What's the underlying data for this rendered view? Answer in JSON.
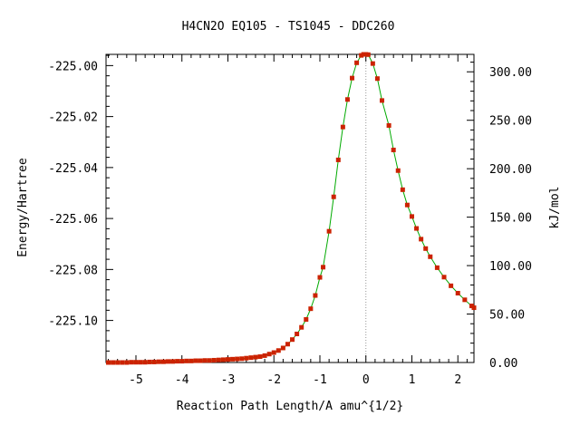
{
  "chart_data": {
    "type": "line",
    "title": "H4CN2O   EQ105 - TS1045 - DDC260",
    "xlabel": "Reaction Path Length/A amu^{1/2}",
    "ylabel": "Energy/Hartree",
    "y2label": "kJ/mol",
    "xlim": [
      -5.65,
      2.35
    ],
    "ylim": [
      -225.1165,
      -224.9956
    ],
    "y2lim": [
      0.0,
      318.0
    ],
    "x_ticks": [
      "-5",
      "-4",
      "-3",
      "-2",
      "-1",
      "0",
      "1",
      "2"
    ],
    "x_tick_values": [
      -5,
      -4,
      -3,
      -2,
      -1,
      0,
      1,
      2
    ],
    "y_ticks": [
      "-225.00",
      "-225.02",
      "-225.04",
      "-225.06",
      "-225.08",
      "-225.10"
    ],
    "y_tick_values": [
      -225.0,
      -225.02,
      -225.04,
      -225.06,
      -225.08,
      -225.1
    ],
    "y2_ticks": [
      "0.00",
      "50.00",
      "100.00",
      "150.00",
      "200.00",
      "250.00",
      "300.00"
    ],
    "y2_tick_values": [
      0,
      50,
      100,
      150,
      200,
      250,
      300
    ],
    "ts_line_x": 0.0,
    "grid": false,
    "line_color": "#00aa00",
    "marker_color": "#cc2200",
    "series": [
      {
        "points": [
          [
            -5.6,
            -225.1165
          ],
          [
            -5.5,
            -225.1165
          ],
          [
            -5.4,
            -225.1165
          ],
          [
            -5.3,
            -225.1165
          ],
          [
            -5.2,
            -225.1165
          ],
          [
            -5.1,
            -225.1164
          ],
          [
            -5.0,
            -225.1164
          ],
          [
            -4.9,
            -225.1164
          ],
          [
            -4.8,
            -225.1164
          ],
          [
            -4.7,
            -225.1163
          ],
          [
            -4.6,
            -225.1163
          ],
          [
            -4.5,
            -225.1162
          ],
          [
            -4.4,
            -225.1162
          ],
          [
            -4.3,
            -225.1161
          ],
          [
            -4.2,
            -225.1161
          ],
          [
            -4.1,
            -225.116
          ],
          [
            -4.0,
            -225.116
          ],
          [
            -3.9,
            -225.1159
          ],
          [
            -3.8,
            -225.1159
          ],
          [
            -3.7,
            -225.1158
          ],
          [
            -3.6,
            -225.1158
          ],
          [
            -3.5,
            -225.1157
          ],
          [
            -3.4,
            -225.1157
          ],
          [
            -3.3,
            -225.1156
          ],
          [
            -3.2,
            -225.1155
          ],
          [
            -3.1,
            -225.1154
          ],
          [
            -3.0,
            -225.1153
          ],
          [
            -2.9,
            -225.1152
          ],
          [
            -2.8,
            -225.1151
          ],
          [
            -2.7,
            -225.115
          ],
          [
            -2.6,
            -225.1148
          ],
          [
            -2.5,
            -225.1146
          ],
          [
            -2.4,
            -225.1144
          ],
          [
            -2.3,
            -225.1142
          ],
          [
            -2.2,
            -225.1138
          ],
          [
            -2.1,
            -225.1132
          ],
          [
            -2.0,
            -225.1126
          ],
          [
            -1.9,
            -225.1118
          ],
          [
            -1.8,
            -225.1108
          ],
          [
            -1.7,
            -225.1093
          ],
          [
            -1.6,
            -225.1075
          ],
          [
            -1.5,
            -225.1053
          ],
          [
            -1.4,
            -225.1027
          ],
          [
            -1.3,
            -225.0996
          ],
          [
            -1.2,
            -225.0954
          ],
          [
            -1.1,
            -225.0902
          ],
          [
            -1.0,
            -225.0831
          ],
          [
            -0.93,
            -225.0791
          ],
          [
            -0.8,
            -225.065
          ],
          [
            -0.7,
            -225.0515
          ],
          [
            -0.6,
            -225.037
          ],
          [
            -0.5,
            -225.0241
          ],
          [
            -0.4,
            -225.0133
          ],
          [
            -0.3,
            -225.0049
          ],
          [
            -0.2,
            -224.9989
          ],
          [
            -0.1,
            -224.996
          ],
          [
            -0.05,
            -224.9956
          ],
          [
            0.0,
            -224.9956
          ],
          [
            0.05,
            -224.9957
          ],
          [
            0.15,
            -224.9992
          ],
          [
            0.25,
            -225.0051
          ],
          [
            0.35,
            -225.0137
          ],
          [
            0.5,
            -225.0235
          ],
          [
            0.6,
            -225.0331
          ],
          [
            0.7,
            -225.0412
          ],
          [
            0.8,
            -225.0487
          ],
          [
            0.9,
            -225.0547
          ],
          [
            1.0,
            -225.0592
          ],
          [
            1.1,
            -225.0639
          ],
          [
            1.2,
            -225.0681
          ],
          [
            1.3,
            -225.0718
          ],
          [
            1.4,
            -225.075
          ],
          [
            1.55,
            -225.0793
          ],
          [
            1.7,
            -225.083
          ],
          [
            1.85,
            -225.0864
          ],
          [
            2.0,
            -225.0893
          ],
          [
            2.15,
            -225.0919
          ],
          [
            2.3,
            -225.0943
          ],
          [
            2.35,
            -225.095
          ]
        ]
      }
    ]
  }
}
